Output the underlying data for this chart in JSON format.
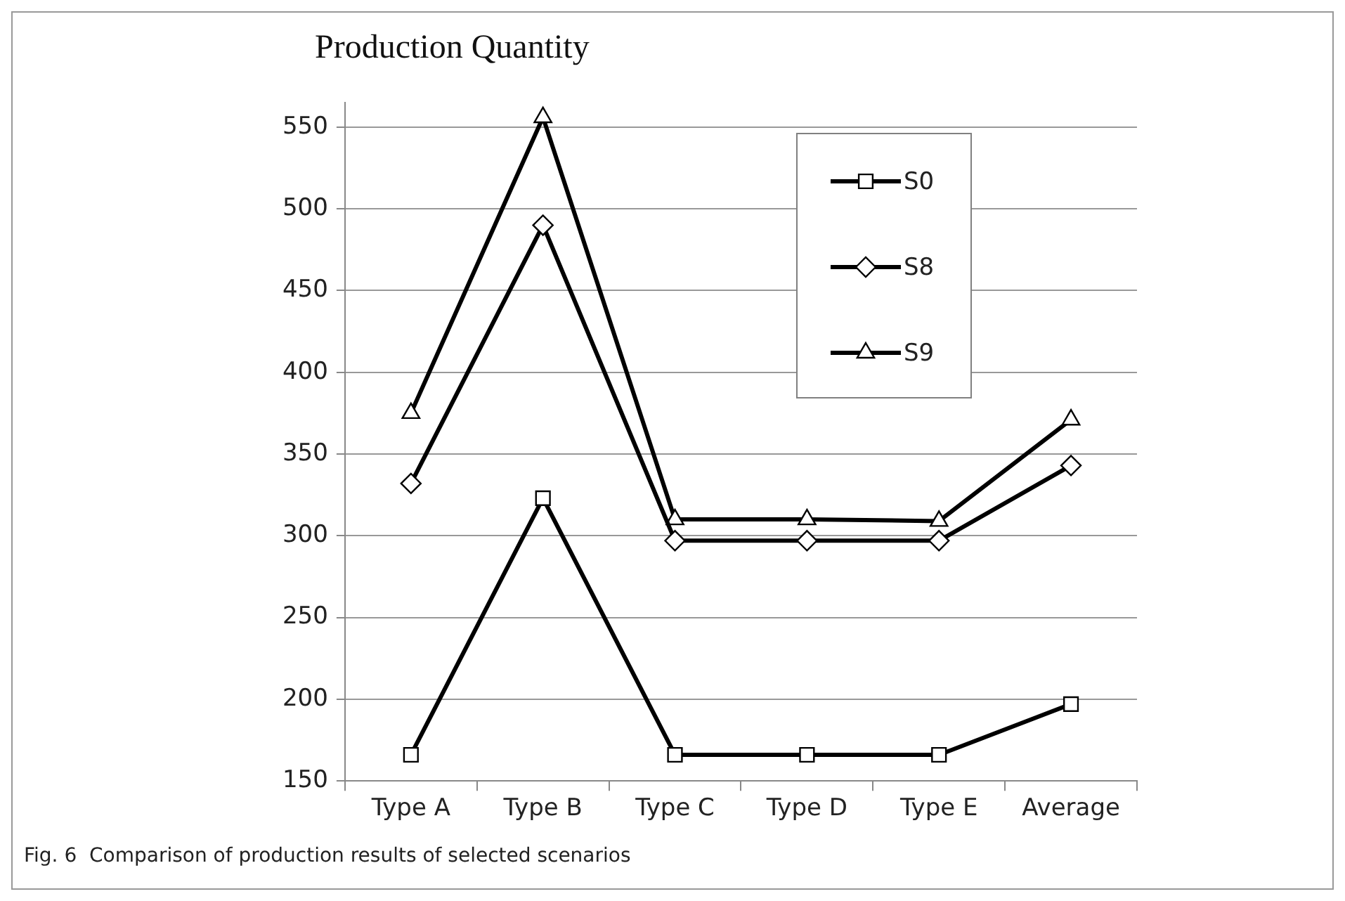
{
  "chart_data": {
    "type": "line",
    "title": "Production Quantity",
    "categories": [
      "Type A",
      "Type B",
      "Type C",
      "Type D",
      "Type E",
      "Average"
    ],
    "series": [
      {
        "name": "S0",
        "color": "#000000",
        "marker": "square",
        "values": [
          166,
          323,
          166,
          166,
          166,
          197
        ]
      },
      {
        "name": "S8",
        "color": "#000000",
        "marker": "diamond",
        "values": [
          332,
          490,
          297,
          297,
          297,
          343
        ]
      },
      {
        "name": "S9",
        "color": "#000000",
        "marker": "triangle",
        "values": [
          375,
          556,
          310,
          310,
          309,
          371
        ]
      }
    ],
    "ylim": [
      150,
      565
    ],
    "yticks": [
      150,
      200,
      250,
      300,
      350,
      400,
      450,
      500,
      550
    ],
    "grid": "y",
    "legend": "top right",
    "line_style": "solid",
    "annotations": [
      "Fig. 6  Comparison of production results of selected scenarios"
    ]
  }
}
